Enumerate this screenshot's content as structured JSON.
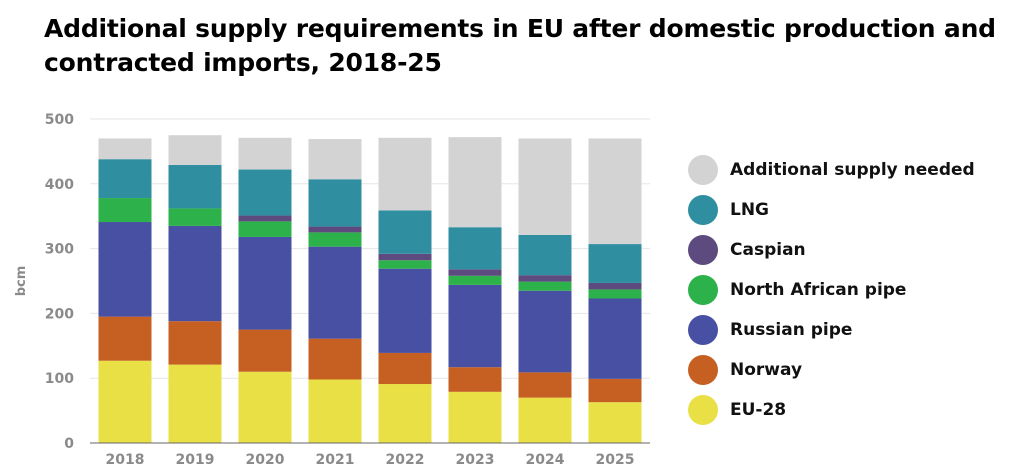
{
  "chart_data": {
    "type": "bar",
    "stacked": true,
    "title": "Additional supply requirements in EU after domestic production and contracted imports, 2018-25",
    "ylabel": "bcm",
    "xlabel": "",
    "ylim": [
      0,
      500
    ],
    "yticks": [
      0,
      100,
      200,
      300,
      400,
      500
    ],
    "grid": true,
    "legend_position": "right",
    "categories": [
      "2018",
      "2019",
      "2020",
      "2021",
      "2022",
      "2023",
      "2024",
      "2025"
    ],
    "series": [
      {
        "name": "EU-28",
        "color": "#e8e045",
        "values": [
          127,
          121,
          110,
          98,
          91,
          79,
          70,
          63
        ]
      },
      {
        "name": "Norway",
        "color": "#c55f22",
        "values": [
          68,
          67,
          65,
          63,
          48,
          38,
          39,
          36
        ]
      },
      {
        "name": "Russian pipe",
        "color": "#4750a3",
        "values": [
          146,
          147,
          143,
          142,
          130,
          127,
          126,
          124
        ]
      },
      {
        "name": "North African pipe",
        "color": "#2db14a",
        "values": [
          37,
          27,
          24,
          22,
          13,
          14,
          14,
          14
        ]
      },
      {
        "name": "Caspian",
        "color": "#5d4a7e",
        "values": [
          0,
          0,
          9,
          9,
          10,
          10,
          10,
          10
        ]
      },
      {
        "name": "LNG",
        "color": "#2f8ea0",
        "values": [
          60,
          67,
          71,
          73,
          67,
          65,
          62,
          60
        ]
      },
      {
        "name": "Additional supply needed",
        "color": "#d3d3d3",
        "values": [
          32,
          46,
          49,
          62,
          112,
          139,
          149,
          163
        ]
      }
    ]
  }
}
